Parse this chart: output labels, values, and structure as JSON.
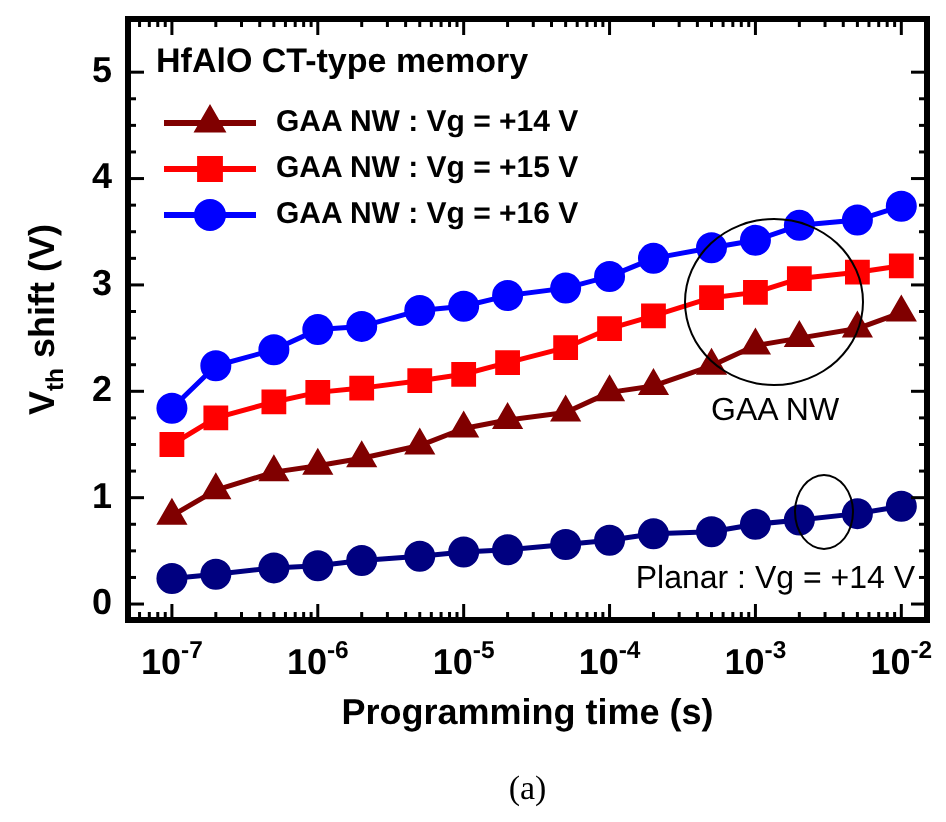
{
  "chart_data": {
    "type": "line",
    "title": "HfAlO CT-type memory",
    "xlabel": "Programming time (s)",
    "ylabel": "V$_{th}$ shift (V)",
    "x": [
      1e-07,
      2e-07,
      5e-07,
      1e-06,
      2e-06,
      5e-06,
      1e-05,
      2e-05,
      5e-05,
      0.0001,
      0.0002,
      0.0005,
      0.001,
      0.002,
      0.005,
      0.01
    ],
    "series": [
      {
        "name": "GAA NW : Vg = +14 V",
        "color": "#800000",
        "marker": "triangle",
        "values": [
          0.83,
          1.07,
          1.24,
          1.3,
          1.37,
          1.49,
          1.65,
          1.73,
          1.8,
          1.99,
          2.05,
          2.24,
          2.43,
          2.5,
          2.59,
          2.74
        ]
      },
      {
        "name": "GAA NW : Vg = +15 V",
        "color": "#ff0000",
        "marker": "square",
        "values": [
          1.5,
          1.75,
          1.9,
          1.99,
          2.03,
          2.1,
          2.16,
          2.27,
          2.41,
          2.59,
          2.71,
          2.88,
          2.93,
          3.06,
          3.12,
          3.18
        ]
      },
      {
        "name": "GAA NW : Vg = +16 V",
        "color": "#0000ff",
        "marker": "circle",
        "values": [
          1.84,
          2.24,
          2.39,
          2.58,
          2.61,
          2.76,
          2.8,
          2.9,
          2.97,
          3.08,
          3.25,
          3.35,
          3.42,
          3.56,
          3.61,
          3.74
        ]
      },
      {
        "color": "#000080",
        "marker": "circle",
        "values": [
          0.24,
          0.28,
          0.34,
          0.36,
          0.41,
          0.45,
          0.49,
          0.51,
          0.56,
          0.6,
          0.66,
          0.68,
          0.75,
          0.79,
          0.85,
          0.92
        ]
      }
    ],
    "annotations": [
      "GAA NW",
      "Planar : Vg = +14 V",
      "(a)"
    ],
    "log": "x",
    "xlim": [
      5e-08,
      0.015
    ],
    "ylim": [
      -0.15,
      5.5
    ],
    "xticks": [
      {
        "value": 1e-07,
        "label": "10$^{-7}$"
      },
      {
        "value": 1e-06,
        "label": "10$^{-6}$"
      },
      {
        "value": 1e-05,
        "label": "10$^{-5}$"
      },
      {
        "value": 0.0001,
        "label": "10$^{-4}$"
      },
      {
        "value": 0.001,
        "label": "10$^{-3}$"
      },
      {
        "value": 0.01,
        "label": "10$^{-2}$"
      }
    ],
    "yticks": [
      0,
      1,
      2,
      3,
      4,
      5
    ],
    "grid": false,
    "legend": "top left"
  }
}
